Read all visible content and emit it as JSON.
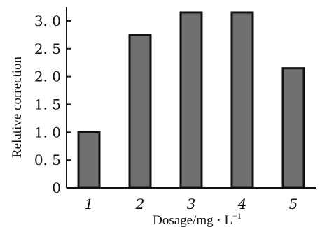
{
  "chart_data": {
    "type": "bar",
    "categories": [
      "1",
      "2",
      "3",
      "4",
      "5"
    ],
    "values": [
      1.0,
      2.75,
      3.15,
      3.15,
      2.15
    ],
    "xlabel": "Dosage/mg · L",
    "xlabel_sup": "−1",
    "ylabel": "Relative correction",
    "ylim": [
      0,
      3.25
    ],
    "yticks": [
      0,
      0.5,
      1.0,
      1.5,
      2.0,
      2.5,
      3.0
    ],
    "ytick_labels": [
      "0",
      "0. 5",
      "1. 0",
      "1. 5",
      "2. 0",
      "2. 5",
      "3. 0"
    ],
    "bar_color": "#707070",
    "grid": false,
    "legend": "none"
  }
}
